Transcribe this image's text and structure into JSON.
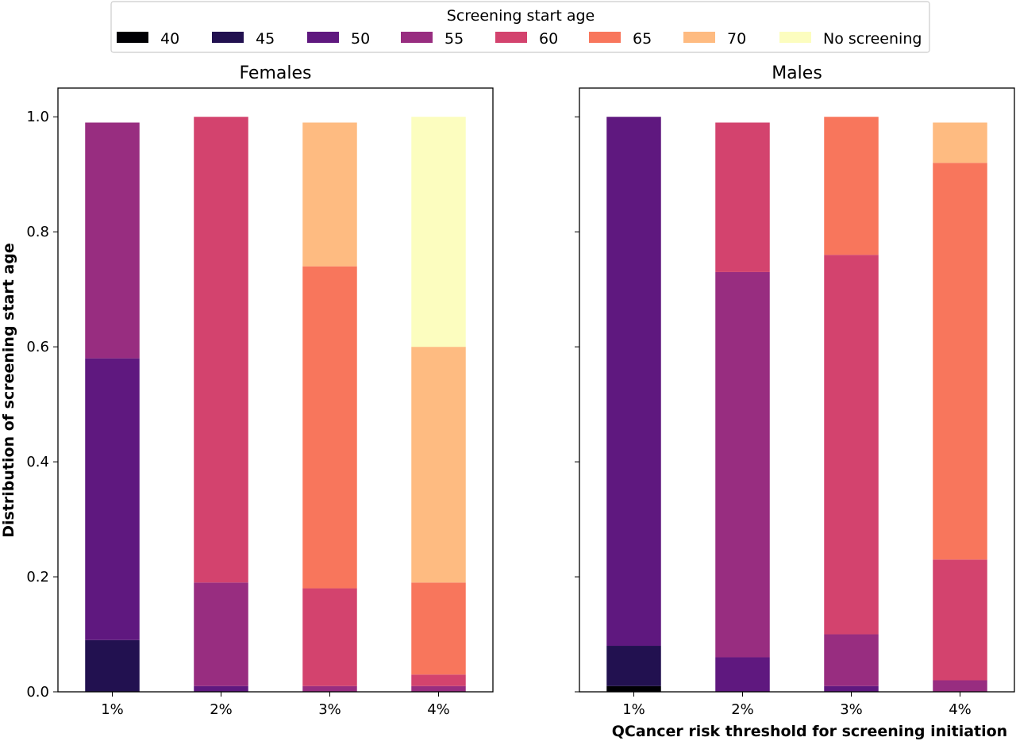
{
  "chart_data": {
    "type": "bar",
    "stacked": true,
    "legend": {
      "title": "Screening start age",
      "placement": "top-center",
      "entries": [
        {
          "label": "40",
          "color": "#000004"
        },
        {
          "label": "45",
          "color": "#221150"
        },
        {
          "label": "50",
          "color": "#5f187f"
        },
        {
          "label": "55",
          "color": "#982d80"
        },
        {
          "label": "60",
          "color": "#d3436e"
        },
        {
          "label": "65",
          "color": "#f8765c"
        },
        {
          "label": "70",
          "color": "#febb81"
        },
        {
          "label": "No screening",
          "color": "#fcfdbf"
        }
      ]
    },
    "ylabel": "Distribution of screening start age",
    "xlabel": "QCancer risk threshold for screening initiation",
    "ylim": [
      0,
      1.05
    ],
    "yticks": [
      "0.0",
      "0.2",
      "0.4",
      "0.6",
      "0.8",
      "1.0"
    ],
    "grid": false,
    "panels": [
      {
        "title": "Females",
        "categories": [
          "1%",
          "2%",
          "3%",
          "4%"
        ],
        "series": [
          {
            "name": "40",
            "values": [
              0.0,
              0.0,
              0.0,
              0.0
            ]
          },
          {
            "name": "45",
            "values": [
              0.09,
              0.0,
              0.0,
              0.0
            ]
          },
          {
            "name": "50",
            "values": [
              0.49,
              0.01,
              0.0,
              0.0
            ]
          },
          {
            "name": "55",
            "values": [
              0.41,
              0.18,
              0.01,
              0.01
            ]
          },
          {
            "name": "60",
            "values": [
              0.0,
              0.81,
              0.17,
              0.02
            ]
          },
          {
            "name": "65",
            "values": [
              0.0,
              0.0,
              0.56,
              0.16
            ]
          },
          {
            "name": "70",
            "values": [
              0.0,
              0.0,
              0.25,
              0.41
            ]
          },
          {
            "name": "No screening",
            "values": [
              0.0,
              0.0,
              0.0,
              0.4
            ]
          }
        ]
      },
      {
        "title": "Males",
        "categories": [
          "1%",
          "2%",
          "3%",
          "4%"
        ],
        "series": [
          {
            "name": "40",
            "values": [
              0.01,
              0.0,
              0.0,
              0.0
            ]
          },
          {
            "name": "45",
            "values": [
              0.07,
              0.0,
              0.0,
              0.0
            ]
          },
          {
            "name": "50",
            "values": [
              0.92,
              0.06,
              0.01,
              0.0
            ]
          },
          {
            "name": "55",
            "values": [
              0.0,
              0.67,
              0.09,
              0.02
            ]
          },
          {
            "name": "60",
            "values": [
              0.0,
              0.26,
              0.66,
              0.21
            ]
          },
          {
            "name": "65",
            "values": [
              0.0,
              0.0,
              0.24,
              0.69
            ]
          },
          {
            "name": "70",
            "values": [
              0.0,
              0.0,
              0.0,
              0.07
            ]
          },
          {
            "name": "No screening",
            "values": [
              0.0,
              0.0,
              0.0,
              0.0
            ]
          }
        ]
      }
    ]
  }
}
